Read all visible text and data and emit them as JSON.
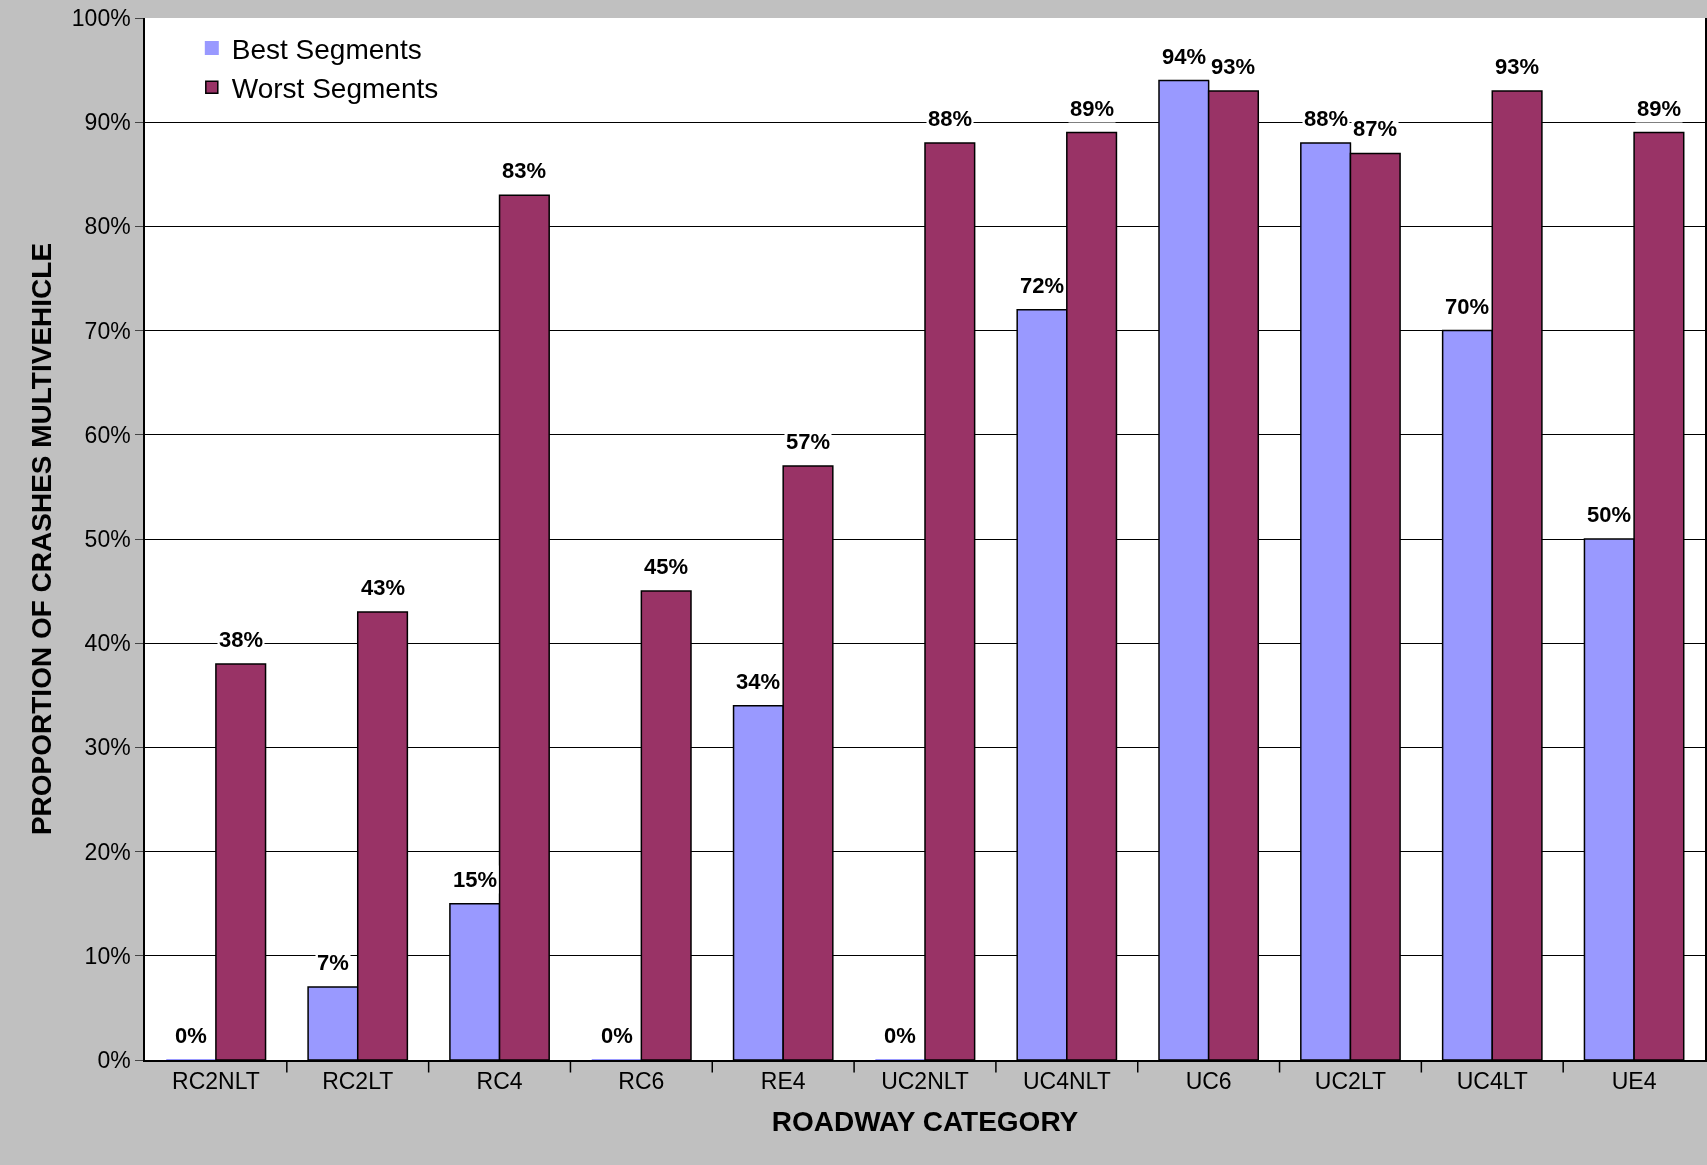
{
  "chart_data": {
    "type": "bar",
    "xlabel": "ROADWAY CATEGORY",
    "ylabel": "PROPORTION OF CRASHES MULTIVEHICLE",
    "categories": [
      "RC2NLT",
      "RC2LT",
      "RC4",
      "RC6",
      "RE4",
      "UC2NLT",
      "UC4NLT",
      "UC6",
      "UC2LT",
      "UC4LT",
      "UE4"
    ],
    "series": [
      {
        "name": "Best Segments",
        "color": "#9999ff",
        "values": [
          0,
          7,
          15,
          0,
          34,
          0,
          72,
          94,
          88,
          70,
          50
        ],
        "value_labels": [
          "0%",
          "7%",
          "15%",
          "0%",
          "34%",
          "0%",
          "72%",
          "94%",
          "88%",
          "70%",
          "50%"
        ]
      },
      {
        "name": "Worst Segments",
        "color": "#993366",
        "values": [
          38,
          43,
          83,
          45,
          57,
          88,
          89,
          93,
          87,
          93,
          89
        ],
        "value_labels": [
          "38%",
          "43%",
          "83%",
          "45%",
          "57%",
          "88%",
          "89%",
          "93%",
          "87%",
          "93%",
          "89%"
        ]
      }
    ],
    "ylim": [
      0,
      100
    ],
    "yticks": [
      {
        "value": 0,
        "label": "0%"
      },
      {
        "value": 10,
        "label": "10%"
      },
      {
        "value": 20,
        "label": "20%"
      },
      {
        "value": 30,
        "label": "30%"
      },
      {
        "value": 40,
        "label": "40%"
      },
      {
        "value": 50,
        "label": "50%"
      },
      {
        "value": 60,
        "label": "60%"
      },
      {
        "value": 70,
        "label": "70%"
      },
      {
        "value": 80,
        "label": "80%"
      },
      {
        "value": 90,
        "label": "90%"
      },
      {
        "value": 100,
        "label": "100%"
      }
    ],
    "grid": "y",
    "legend": "top left"
  }
}
